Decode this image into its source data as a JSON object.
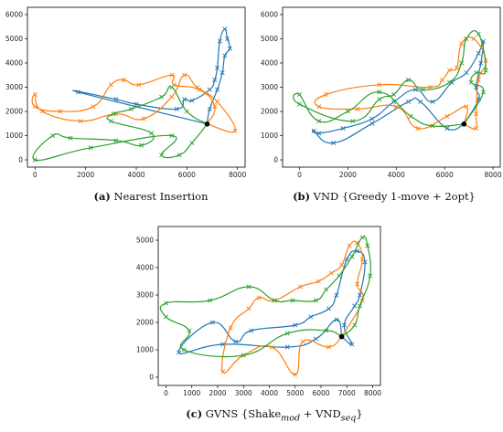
{
  "figure": {
    "captions": [
      {
        "letter": "(a)",
        "text": " Nearest Insertion"
      },
      {
        "letter": "(b)",
        "text": " VND {Greedy 1-move + 2opt}"
      },
      {
        "letter": "(c)",
        "text": " GVNS {Shake"
      }
    ],
    "caption_c_sub1": "mod",
    "caption_c_mid": " + VND",
    "caption_c_sub2": "seq",
    "caption_c_end": "}"
  },
  "chart_data": [
    {
      "type": "line",
      "title": "",
      "xlabel": "",
      "ylabel": "",
      "xlim": [
        -300,
        8300
      ],
      "ylim": [
        -300,
        6300
      ],
      "xticks": [
        0,
        2000,
        4000,
        6000,
        8000
      ],
      "yticks": [
        0,
        1000,
        2000,
        3000,
        4000,
        5000,
        6000
      ],
      "depot": [
        6800,
        1480
      ],
      "colors": [
        "#1f77b4",
        "#ff7f0e",
        "#2ca02c"
      ],
      "routes": [
        [
          [
            6800,
            1480
          ],
          [
            1700,
            2800
          ],
          [
            3200,
            2500
          ],
          [
            4000,
            2300
          ],
          [
            5600,
            2100
          ],
          [
            5900,
            2500
          ],
          [
            6200,
            2450
          ],
          [
            6900,
            2900
          ],
          [
            7100,
            3300
          ],
          [
            7200,
            3800
          ],
          [
            7300,
            4900
          ],
          [
            7500,
            5400
          ],
          [
            7600,
            5000
          ],
          [
            7700,
            4600
          ],
          [
            7500,
            4300
          ],
          [
            7400,
            3600
          ],
          [
            7200,
            2900
          ],
          [
            6900,
            2100
          ],
          [
            6800,
            1480
          ]
        ],
        [
          [
            6800,
            1480
          ],
          [
            7100,
            2200
          ],
          [
            6500,
            2900
          ],
          [
            5500,
            3100
          ],
          [
            5400,
            3500
          ],
          [
            4100,
            3100
          ],
          [
            3500,
            3300
          ],
          [
            3000,
            3100
          ],
          [
            2300,
            2200
          ],
          [
            1000,
            2000
          ],
          [
            0,
            2200
          ],
          [
            0,
            2700
          ],
          [
            300,
            2000
          ],
          [
            1800,
            1600
          ],
          [
            3200,
            1900
          ],
          [
            4300,
            1700
          ],
          [
            5400,
            2600
          ],
          [
            5900,
            3500
          ],
          [
            6400,
            3000
          ],
          [
            7200,
            2400
          ],
          [
            7900,
            1200
          ],
          [
            6800,
            1480
          ]
        ],
        [
          [
            6800,
            1480
          ],
          [
            6000,
            2000
          ],
          [
            5400,
            3000
          ],
          [
            5000,
            2600
          ],
          [
            3800,
            2100
          ],
          [
            3100,
            1900
          ],
          [
            3000,
            1600
          ],
          [
            4600,
            1100
          ],
          [
            4200,
            600
          ],
          [
            3200,
            800
          ],
          [
            1400,
            900
          ],
          [
            700,
            1000
          ],
          [
            0,
            0
          ],
          [
            2200,
            500
          ],
          [
            5400,
            1000
          ],
          [
            5000,
            200
          ],
          [
            5700,
            200
          ],
          [
            6200,
            700
          ],
          [
            6800,
            1480
          ]
        ]
      ]
    },
    {
      "type": "line",
      "title": "",
      "xlabel": "",
      "ylabel": "",
      "xlim": [
        -700,
        8300
      ],
      "ylim": [
        -300,
        6300
      ],
      "xticks": [
        0,
        2000,
        4000,
        6000,
        8000
      ],
      "yticks": [
        0,
        1000,
        2000,
        3000,
        4000,
        5000,
        6000
      ],
      "depot": [
        6800,
        1480
      ],
      "colors": [
        "#1f77b4",
        "#ff7f0e",
        "#2ca02c"
      ],
      "routes": [
        [
          [
            6800,
            1480
          ],
          [
            7400,
            2500
          ],
          [
            7300,
            3000
          ],
          [
            7500,
            4000
          ],
          [
            7600,
            4900
          ],
          [
            7400,
            4400
          ],
          [
            6900,
            3600
          ],
          [
            6300,
            3200
          ],
          [
            5500,
            2400
          ],
          [
            4800,
            2900
          ],
          [
            3900,
            2400
          ],
          [
            3000,
            1700
          ],
          [
            1800,
            1300
          ],
          [
            800,
            1100
          ],
          [
            600,
            1200
          ],
          [
            1400,
            700
          ],
          [
            3000,
            1500
          ],
          [
            4500,
            2400
          ],
          [
            5000,
            2400
          ],
          [
            6100,
            1300
          ],
          [
            6800,
            1480
          ]
        ],
        [
          [
            6800,
            1480
          ],
          [
            7300,
            1300
          ],
          [
            7300,
            1900
          ],
          [
            7400,
            3300
          ],
          [
            7700,
            4100
          ],
          [
            7200,
            5000
          ],
          [
            6700,
            4800
          ],
          [
            6500,
            3800
          ],
          [
            6200,
            3700
          ],
          [
            5900,
            3300
          ],
          [
            5400,
            3000
          ],
          [
            3300,
            3100
          ],
          [
            1100,
            2700
          ],
          [
            800,
            2200
          ],
          [
            2400,
            2100
          ],
          [
            4000,
            2200
          ],
          [
            4900,
            1300
          ],
          [
            6100,
            1800
          ],
          [
            6900,
            2200
          ],
          [
            6800,
            1480
          ]
        ],
        [
          [
            6800,
            1480
          ],
          [
            7600,
            2800
          ],
          [
            7100,
            3200
          ],
          [
            7300,
            3600
          ],
          [
            7700,
            3700
          ],
          [
            7400,
            5200
          ],
          [
            6900,
            5000
          ],
          [
            6700,
            4000
          ],
          [
            6200,
            3200
          ],
          [
            5100,
            2900
          ],
          [
            4500,
            3300
          ],
          [
            3900,
            2700
          ],
          [
            3300,
            2500
          ],
          [
            2200,
            1600
          ],
          [
            0,
            2300
          ],
          [
            0,
            2700
          ],
          [
            800,
            1600
          ],
          [
            2000,
            2000
          ],
          [
            3300,
            2800
          ],
          [
            4600,
            1800
          ],
          [
            5500,
            1400
          ],
          [
            6800,
            1480
          ]
        ]
      ]
    },
    {
      "type": "line",
      "title": "",
      "xlabel": "",
      "ylabel": "",
      "xlim": [
        -300,
        8300
      ],
      "ylim": [
        -300,
        5500
      ],
      "xticks": [
        0,
        1000,
        2000,
        3000,
        4000,
        5000,
        6000,
        7000,
        8000
      ],
      "yticks": [
        0,
        1000,
        2000,
        3000,
        4000,
        5000
      ],
      "depot": [
        6800,
        1480
      ],
      "colors": [
        "#1f77b4",
        "#ff7f0e",
        "#2ca02c"
      ],
      "routes": [
        [
          [
            6800,
            1480
          ],
          [
            7200,
            1200
          ],
          [
            6900,
            1900
          ],
          [
            7300,
            2600
          ],
          [
            7500,
            3000
          ],
          [
            7700,
            4200
          ],
          [
            7400,
            4600
          ],
          [
            7000,
            4300
          ],
          [
            6600,
            3000
          ],
          [
            6300,
            2500
          ],
          [
            5600,
            2200
          ],
          [
            5000,
            1900
          ],
          [
            3300,
            1700
          ],
          [
            2700,
            1300
          ],
          [
            1800,
            2000
          ],
          [
            500,
            900
          ],
          [
            2200,
            1200
          ],
          [
            4700,
            1100
          ],
          [
            5800,
            1400
          ],
          [
            6600,
            2100
          ],
          [
            6800,
            1480
          ]
        ],
        [
          [
            6800,
            1480
          ],
          [
            7600,
            2800
          ],
          [
            7400,
            3400
          ],
          [
            7600,
            4300
          ],
          [
            7400,
            4900
          ],
          [
            7100,
            4800
          ],
          [
            6800,
            4100
          ],
          [
            6400,
            3800
          ],
          [
            5900,
            3500
          ],
          [
            5200,
            3300
          ],
          [
            4200,
            2800
          ],
          [
            3600,
            2900
          ],
          [
            3200,
            2500
          ],
          [
            2500,
            1800
          ],
          [
            2200,
            200
          ],
          [
            3000,
            800
          ],
          [
            4100,
            1100
          ],
          [
            5000,
            100
          ],
          [
            5300,
            1300
          ],
          [
            6300,
            1100
          ],
          [
            6800,
            1480
          ]
        ],
        [
          [
            6800,
            1480
          ],
          [
            7300,
            1900
          ],
          [
            7500,
            2600
          ],
          [
            7900,
            3700
          ],
          [
            7800,
            4800
          ],
          [
            7600,
            5100
          ],
          [
            7200,
            4400
          ],
          [
            6700,
            3700
          ],
          [
            6200,
            3200
          ],
          [
            5800,
            2800
          ],
          [
            4900,
            2800
          ],
          [
            4200,
            2800
          ],
          [
            3200,
            3300
          ],
          [
            1700,
            2800
          ],
          [
            0,
            2700
          ],
          [
            0,
            2200
          ],
          [
            900,
            1700
          ],
          [
            700,
            1000
          ],
          [
            3000,
            800
          ],
          [
            4700,
            1600
          ],
          [
            6200,
            1700
          ],
          [
            6800,
            1480
          ]
        ]
      ]
    }
  ]
}
